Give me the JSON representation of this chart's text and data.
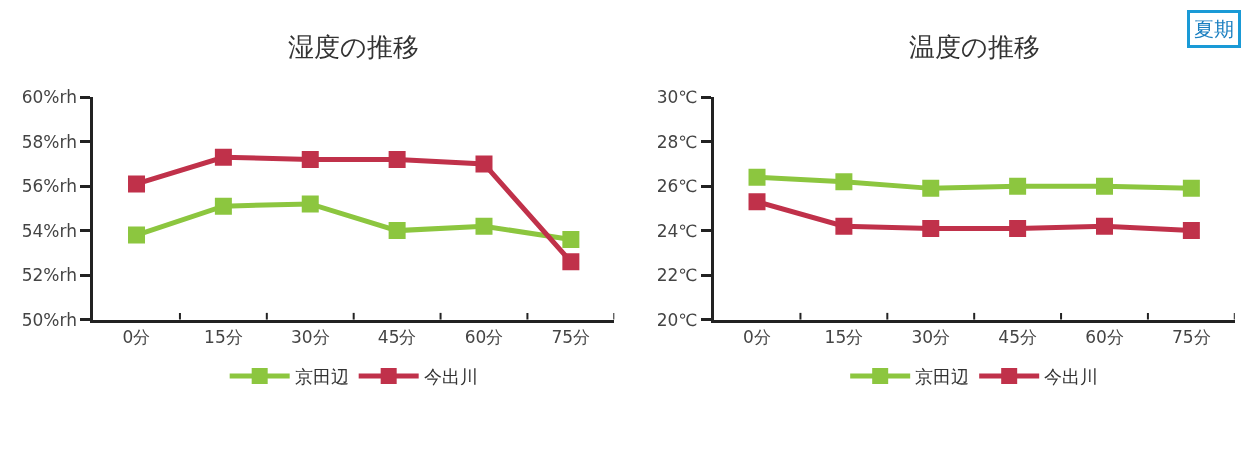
{
  "chart_data": [
    {
      "type": "line",
      "title": "湿度の推移",
      "categories": [
        "0分",
        "15分",
        "30分",
        "45分",
        "60分",
        "75分"
      ],
      "series": [
        {
          "name": "京田辺",
          "color": "#8cc63f",
          "values": [
            53.8,
            55.1,
            55.2,
            54.0,
            54.2,
            53.6
          ]
        },
        {
          "name": "今出川",
          "color": "#c0314a",
          "values": [
            56.1,
            57.3,
            57.2,
            57.2,
            57.0,
            52.6
          ]
        }
      ],
      "ylim": [
        50,
        60
      ],
      "yticks": [
        {
          "value": 50,
          "label": "50%rh"
        },
        {
          "value": 52,
          "label": "52%rh"
        },
        {
          "value": 54,
          "label": "54%rh"
        },
        {
          "value": 56,
          "label": "56%rh"
        },
        {
          "value": 58,
          "label": "58%rh"
        },
        {
          "value": 60,
          "label": "60%rh"
        }
      ],
      "marker": "square",
      "line_style": "solid",
      "legend": "bottom"
    },
    {
      "type": "line",
      "title": "温度の推移",
      "categories": [
        "0分",
        "15分",
        "30分",
        "45分",
        "60分",
        "75分"
      ],
      "series": [
        {
          "name": "京田辺",
          "color": "#8cc63f",
          "values": [
            26.4,
            26.2,
            25.9,
            26.0,
            26.0,
            25.9
          ]
        },
        {
          "name": "今出川",
          "color": "#c0314a",
          "values": [
            25.3,
            24.2,
            24.1,
            24.1,
            24.2,
            24.0
          ]
        }
      ],
      "ylim": [
        20,
        30
      ],
      "yticks": [
        {
          "value": 20,
          "label": "20℃"
        },
        {
          "value": 22,
          "label": "22℃"
        },
        {
          "value": 24,
          "label": "24℃"
        },
        {
          "value": 26,
          "label": "26℃"
        },
        {
          "value": 28,
          "label": "28℃"
        },
        {
          "value": 30,
          "label": "30℃"
        }
      ],
      "marker": "square",
      "line_style": "solid",
      "legend": "bottom",
      "annotations": [
        "夏期"
      ]
    }
  ]
}
